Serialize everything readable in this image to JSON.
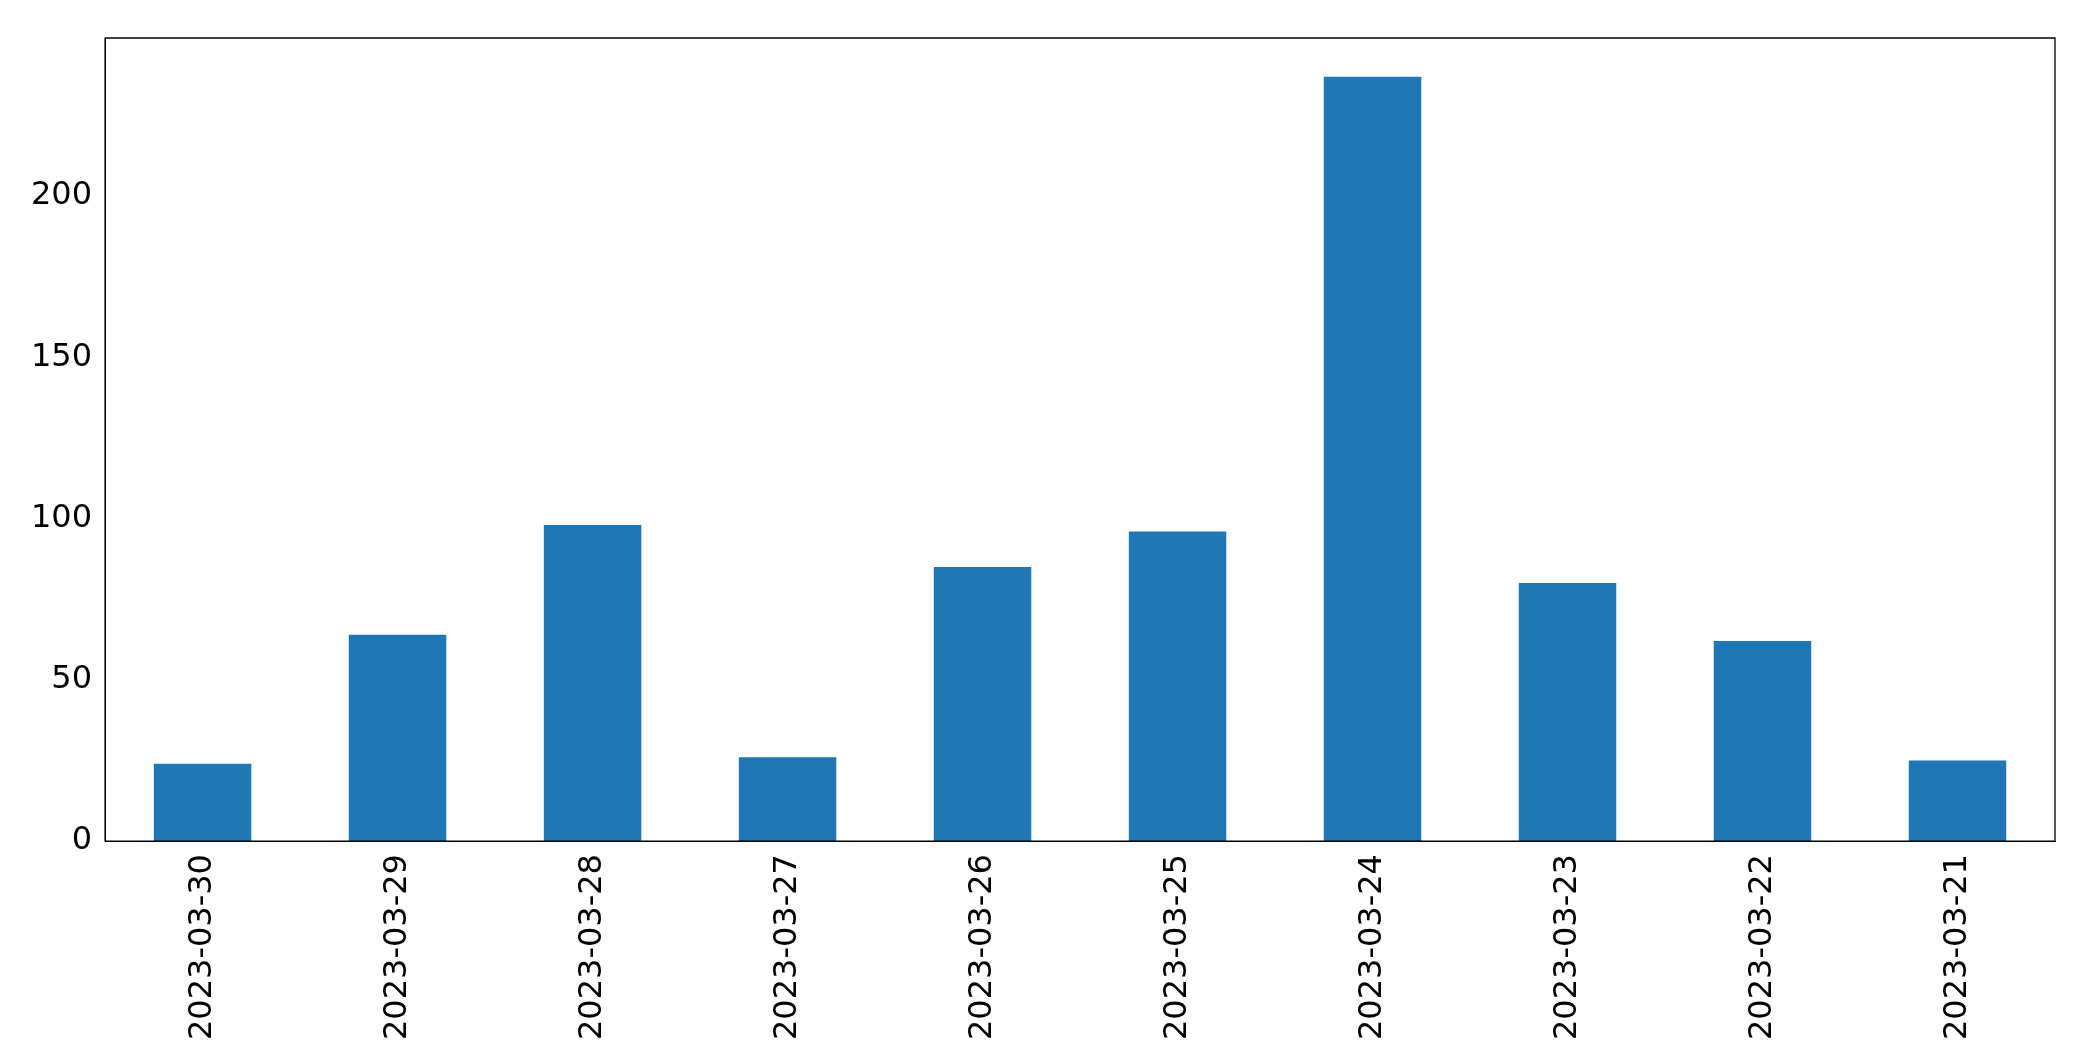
{
  "chart_data": {
    "type": "bar",
    "categories": [
      "2023-03-30",
      "2023-03-29",
      "2023-03-28",
      "2023-03-27",
      "2023-03-26",
      "2023-03-25",
      "2023-03-24",
      "2023-03-23",
      "2023-03-22",
      "2023-03-21"
    ],
    "values": [
      24,
      64,
      98,
      26,
      85,
      96,
      237,
      80,
      62,
      25
    ],
    "color": "#1f77b4",
    "ylim": [
      0,
      249
    ],
    "yticks": [
      0,
      50,
      100,
      150,
      200
    ],
    "grid": false,
    "legend": false
  }
}
